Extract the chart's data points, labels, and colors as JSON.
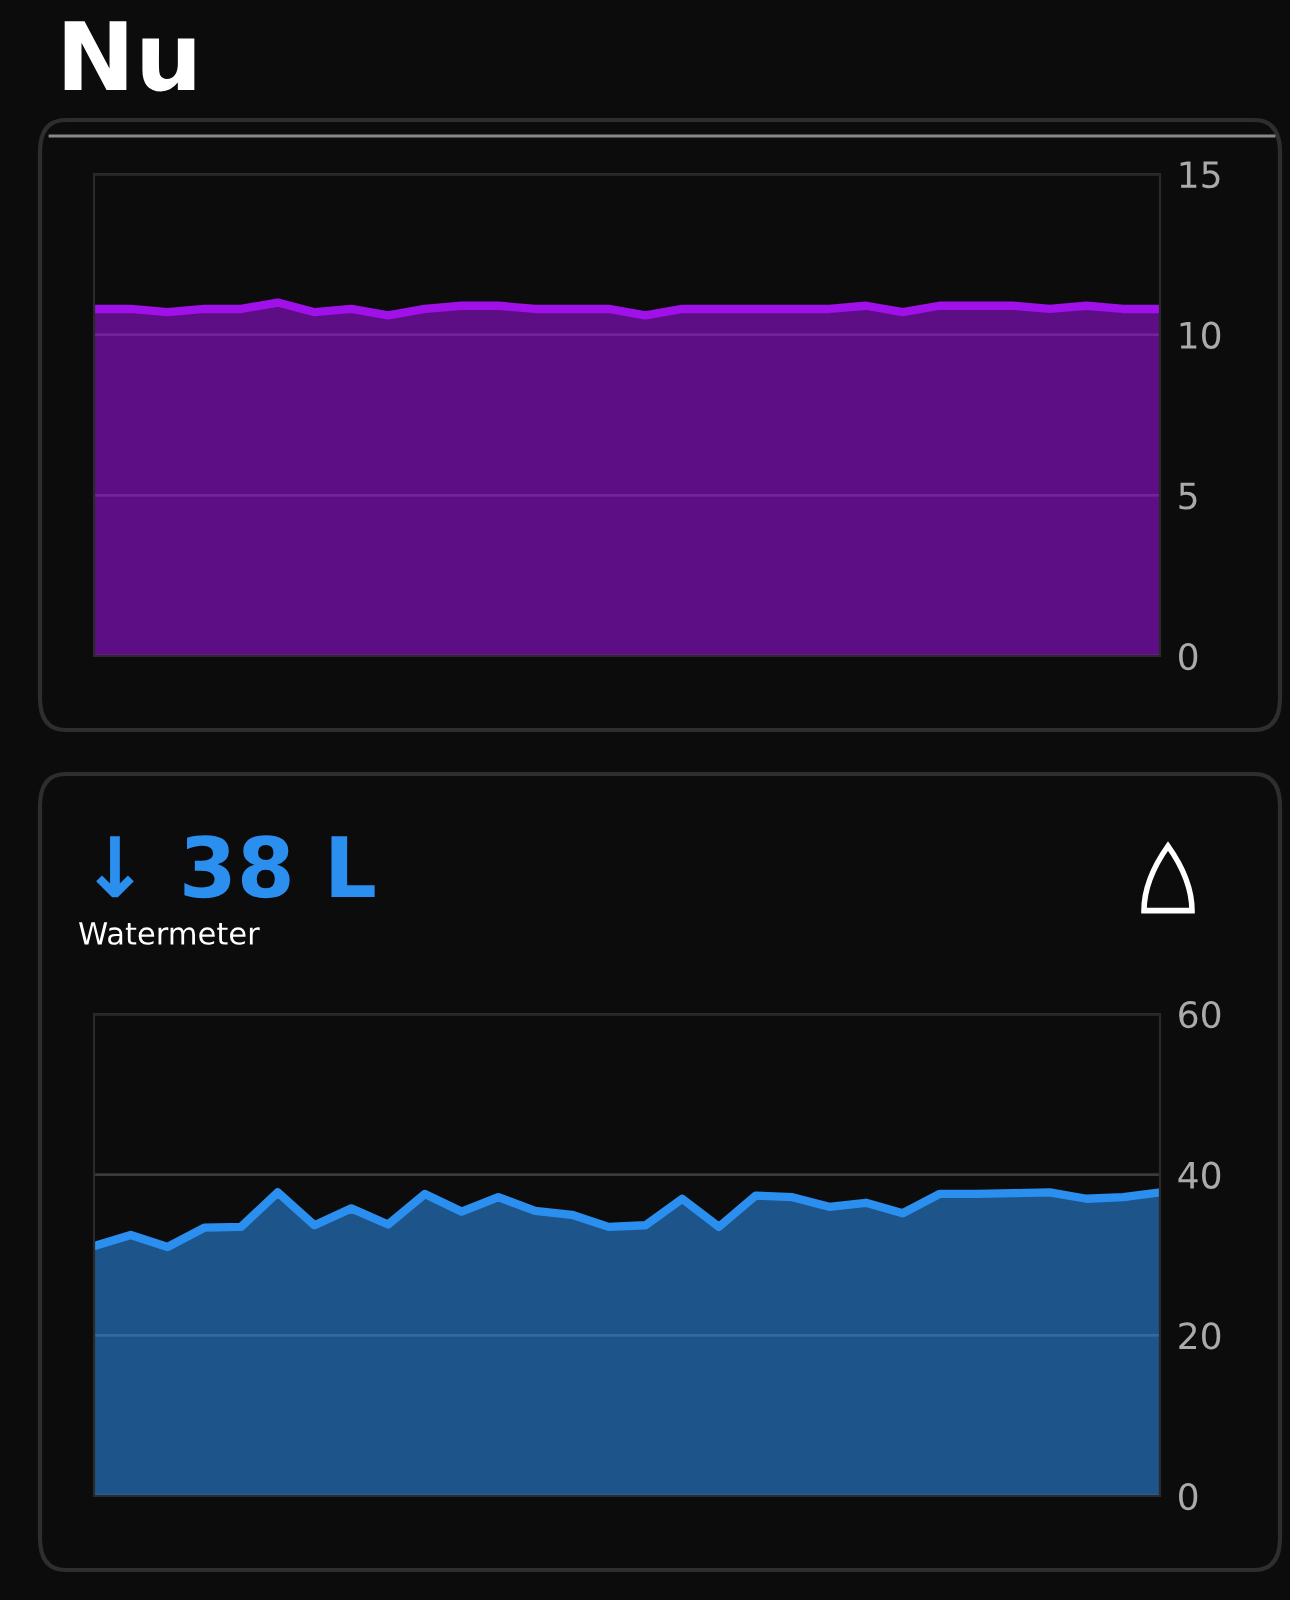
{
  "chart_data": [
    {
      "type": "area",
      "title": "Nu",
      "categories": [
        null,
        null,
        null,
        null,
        null,
        null,
        null,
        null,
        null,
        null,
        null,
        null,
        null,
        null,
        null,
        null,
        null,
        null,
        null,
        null,
        null,
        null,
        null,
        null,
        null,
        null,
        null,
        null,
        null,
        null
      ],
      "series": [
        {
          "color": "#a010e8",
          "values": [
            10.8,
            10.8,
            10.7,
            10.8,
            10.8,
            11.0,
            10.7,
            10.8,
            10.6,
            10.8,
            10.9,
            10.9,
            10.8,
            10.8,
            10.8,
            10.6,
            10.8,
            10.8,
            10.8,
            10.8,
            10.8,
            10.9,
            10.7,
            10.9,
            10.9,
            10.9,
            10.8,
            10.9,
            10.8,
            10.8
          ]
        }
      ],
      "ylim": [
        0,
        15
      ],
      "yticks": [
        0,
        5,
        10,
        15
      ],
      "grid": "y",
      "tick_labels": "y"
    },
    {
      "type": "area",
      "title": "↓ 38 L",
      "subtitle": "Watermeter",
      "categories": [
        null,
        null,
        null,
        null,
        null,
        null,
        null,
        null,
        null,
        null,
        null,
        null,
        null,
        null,
        null,
        null,
        null,
        null,
        null,
        null,
        null,
        null,
        null,
        null,
        null,
        null,
        null,
        null,
        null,
        null
      ],
      "series": [
        {
          "color": "#2b8ff0",
          "values": [
            31.1,
            32.5,
            31.0,
            33.4,
            33.5,
            37.8,
            33.7,
            35.8,
            33.8,
            37.6,
            35.4,
            37.2,
            35.5,
            35.0,
            33.5,
            33.7,
            37.0,
            33.5,
            37.4,
            37.2,
            36.0,
            36.5,
            35.2,
            37.6,
            37.6,
            37.7,
            37.8,
            37.0,
            37.2,
            37.8
          ]
        }
      ],
      "ylim": [
        0,
        60
      ],
      "yticks": [
        0,
        20,
        40,
        60
      ],
      "grid": "y",
      "tick_labels": "y"
    }
  ]
}
